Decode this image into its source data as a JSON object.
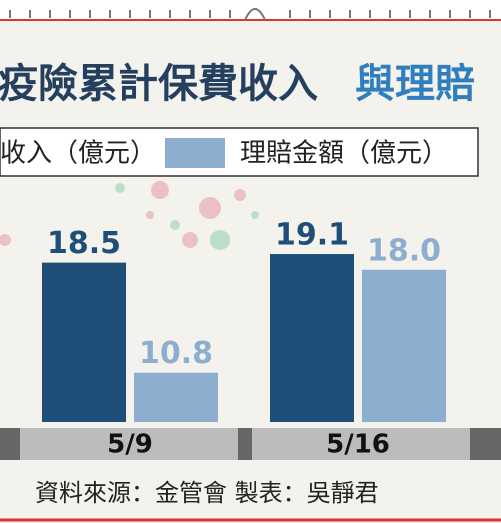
{
  "chart_data": {
    "type": "bar",
    "title": "疫險累計保費收入",
    "title_highlight": "與理賠",
    "categories": [
      "5/9",
      "5/16"
    ],
    "series": [
      {
        "name": "收入（億元）",
        "color": "#1f4f78",
        "values": [
          18.5,
          19.1
        ]
      },
      {
        "name": "理賠金額（億元）",
        "color": "#8eaecf",
        "values": [
          10.8,
          18.0
        ],
        "value_labels": [
          "10.8",
          "18.0"
        ]
      }
    ],
    "ylim": [
      7.35,
      22
    ],
    "source": "資料來源：金管會 製表：吳靜君"
  }
}
